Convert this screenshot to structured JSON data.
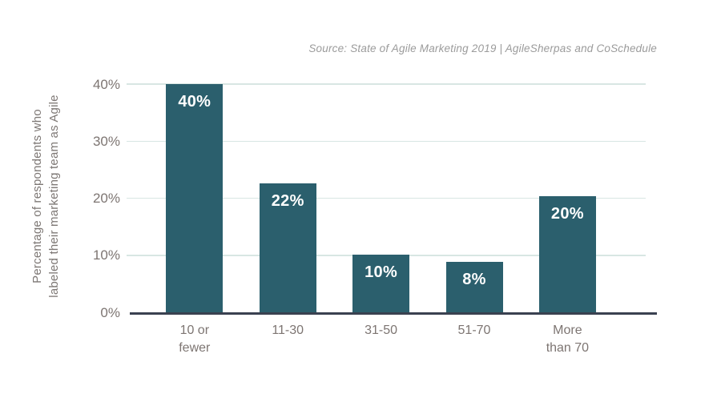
{
  "source_note": "Source: State of Agile Marketing 2019 | AgileSherpas and CoSchedule",
  "y_axis_title": {
    "line1": "Percentage of respondents who",
    "line2": "labeled their marketing team as Agile"
  },
  "chart_data": {
    "type": "bar",
    "title": "",
    "xlabel": "",
    "ylabel": "Percentage of respondents who labeled their marketing team as Agile",
    "categories": [
      "10 or fewer",
      "11-30",
      "31-50",
      "51-70",
      "More than 70"
    ],
    "category_label_lines": [
      [
        "10 or",
        "fewer"
      ],
      [
        "11-30"
      ],
      [
        "31-50"
      ],
      [
        "51-70"
      ],
      [
        "More",
        "than 70"
      ]
    ],
    "values": [
      40,
      22,
      10,
      8,
      20
    ],
    "bar_labels": [
      "40%",
      "22%",
      "10%",
      "8%",
      "20%"
    ],
    "display_heights_pct": [
      40,
      22.6,
      10.1,
      8.8,
      20.4
    ],
    "y_ticks": [
      {
        "label": "40%",
        "value": 40
      },
      {
        "label": "30%",
        "value": 30
      },
      {
        "label": "20%",
        "value": 20
      },
      {
        "label": "10%",
        "value": 10
      },
      {
        "label": "0%",
        "value": 0
      }
    ],
    "ylim": [
      0,
      40
    ],
    "grid": true,
    "legend": false,
    "source": "State of Agile Marketing 2019 | AgileSherpas and CoSchedule",
    "colors": {
      "bar": "#2B5F6D",
      "bar_label": "#FFFFFF",
      "axis_line": "#3A4150",
      "gridline": "#D8E6E3",
      "tick_label": "#7D7572",
      "y_title": "#7E7875",
      "source_text": "#9B9B9B",
      "background": "#FFFFFF"
    }
  }
}
